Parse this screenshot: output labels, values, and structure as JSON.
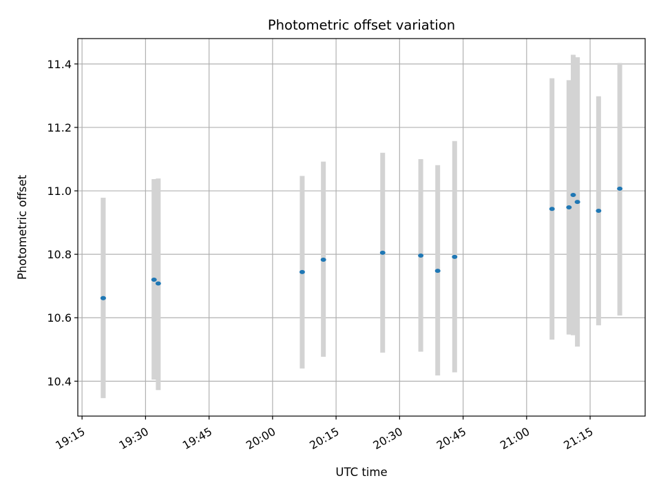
{
  "chart_data": {
    "type": "scatter",
    "title": "Photometric offset variation",
    "xlabel": "UTC time",
    "ylabel": "Photometric offset",
    "x_tick_labels": [
      "19:15",
      "19:30",
      "19:45",
      "20:00",
      "20:15",
      "20:30",
      "20:45",
      "21:00",
      "21:15"
    ],
    "y_tick_labels": [
      "10.4",
      "10.6",
      "10.8",
      "11.0",
      "11.2",
      "11.4"
    ],
    "ylim": [
      10.29,
      11.48
    ],
    "xlim": [
      "19:14",
      "21:28"
    ],
    "grid": true,
    "series": [
      {
        "kind": "points-with-error-bars",
        "x": [
          "19:20",
          "19:20",
          "19:32",
          "19:33",
          "20:07",
          "20:12",
          "20:26",
          "20:35",
          "20:39",
          "20:43",
          "21:06",
          "21:10",
          "21:11",
          "21:12",
          "21:17",
          "21:22"
        ],
        "y": [
          10.662,
          10.662,
          10.72,
          10.708,
          10.744,
          10.783,
          10.805,
          10.796,
          10.748,
          10.792,
          10.943,
          10.948,
          10.987,
          10.965,
          10.937,
          11.007
        ],
        "y_low": [
          10.347,
          10.347,
          10.405,
          10.372,
          10.44,
          10.477,
          10.49,
          10.493,
          10.418,
          10.428,
          10.531,
          10.547,
          10.545,
          10.509,
          10.576,
          10.607
        ],
        "y_high": [
          10.978,
          10.978,
          11.037,
          11.039,
          11.047,
          11.092,
          11.12,
          11.1,
          11.081,
          11.157,
          11.355,
          11.349,
          11.429,
          11.421,
          11.298,
          11.403
        ]
      }
    ],
    "colors": {
      "points": "#1f77b4",
      "error_bars": "#d3d3d3",
      "grid": "#b0b0b0"
    }
  }
}
